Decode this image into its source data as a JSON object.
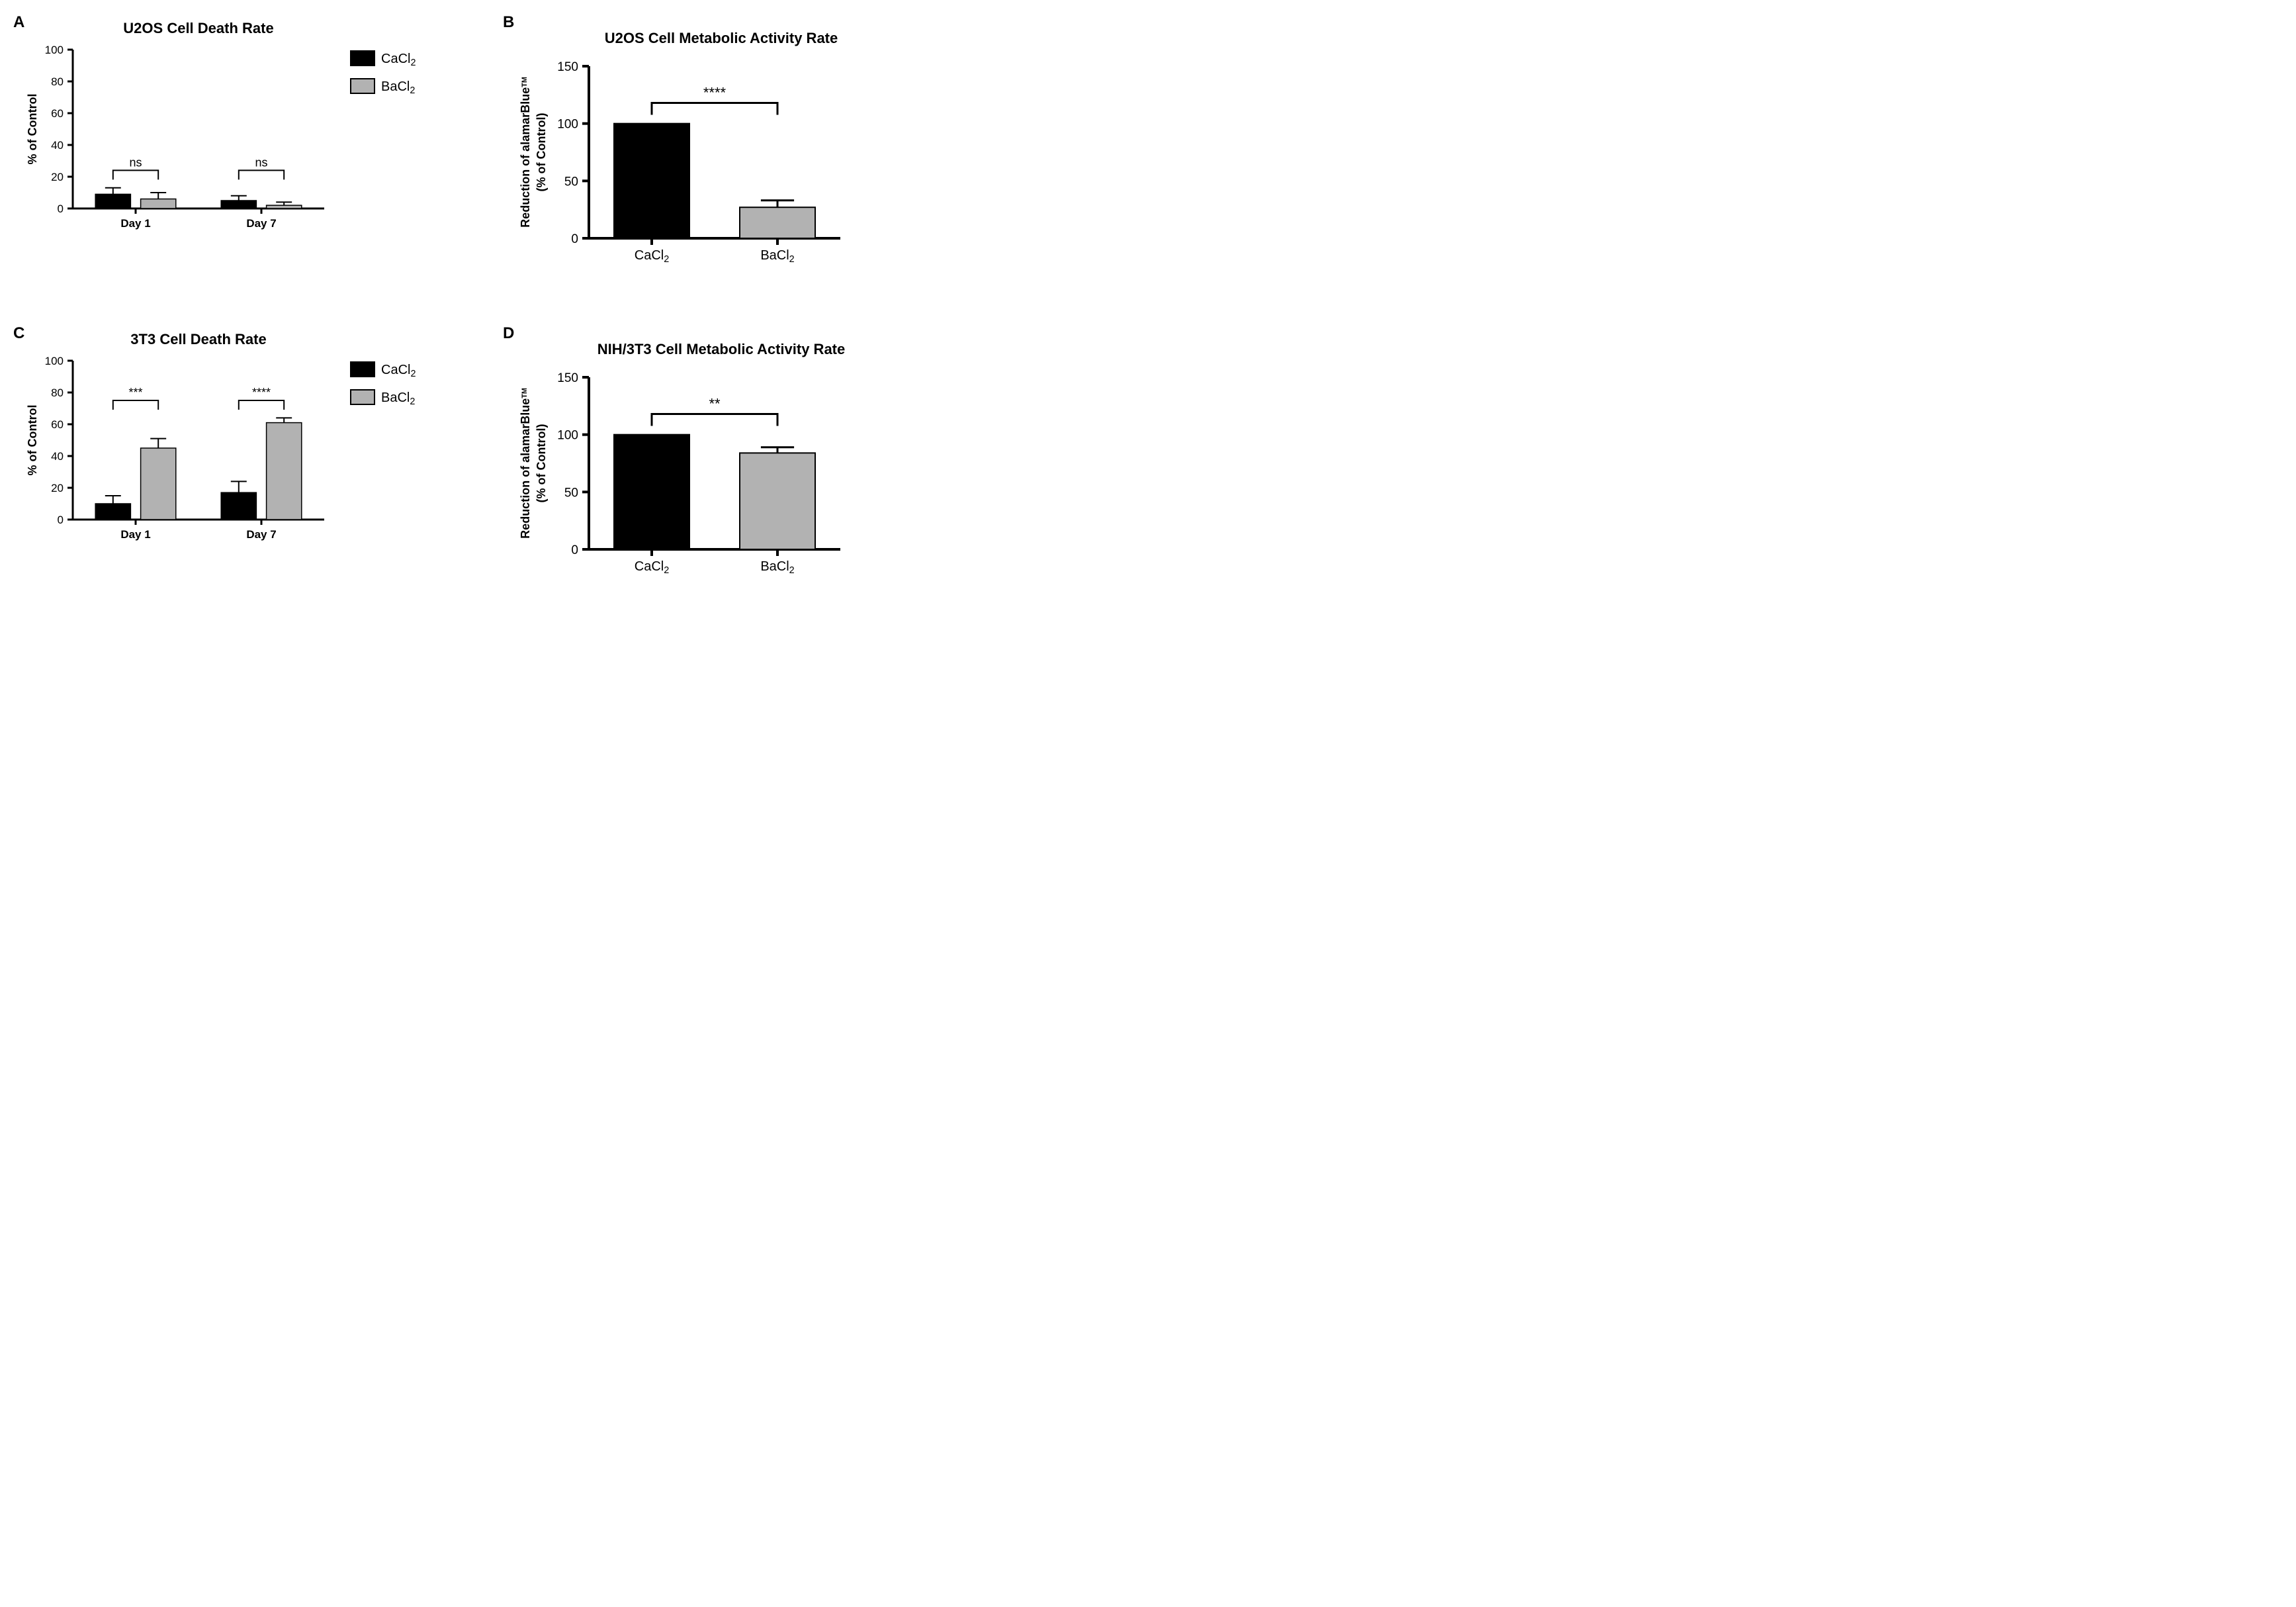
{
  "colors": {
    "cacl2": "#000000",
    "bacl2": "#b2b2b2",
    "stroke": "#000000",
    "bg": "#ffffff"
  },
  "panelA": {
    "label": "A",
    "type": "bar",
    "title": "U2OS Cell Death Rate",
    "title_fontsize": 22,
    "ylabel": "% of  Control",
    "label_fontsize": 18,
    "ylim": [
      0,
      100
    ],
    "ytick_step": 20,
    "axis_linewidth": 3,
    "bar_width_rel": 0.28,
    "gap_rel": 0.08,
    "groups": [
      "Day 1",
      "Day 7"
    ],
    "series": [
      {
        "name": "CaCl2",
        "color": "#000000"
      },
      {
        "name": "BaCl2",
        "color": "#b2b2b2"
      }
    ],
    "values": [
      [
        9,
        6
      ],
      [
        5,
        2
      ]
    ],
    "errors": [
      [
        4,
        4
      ],
      [
        3,
        2
      ]
    ],
    "annotations": [
      {
        "group": 0,
        "label": "ns",
        "y": 24
      },
      {
        "group": 1,
        "label": "ns",
        "y": 24
      }
    ],
    "legend": {
      "position": "right",
      "items": [
        {
          "label": "CaCl",
          "sub": "2",
          "color": "#000000"
        },
        {
          "label": "BaCl",
          "sub": "2",
          "color": "#b2b2b2"
        }
      ]
    }
  },
  "panelB": {
    "label": "B",
    "type": "bar",
    "title": "U2OS Cell Metabolic Activity Rate",
    "title_fontsize": 22,
    "ylabel_line1": "Reduction of alamarBlue",
    "ylabel_tm": "TM",
    "ylabel_line2": "(% of Control)",
    "label_fontsize": 18,
    "ylim": [
      0,
      150
    ],
    "ytick_step": 50,
    "axis_linewidth": 4,
    "bar_width_rel": 0.6,
    "categories": [
      "CaCl2",
      "BaCl2"
    ],
    "values": [
      100,
      27
    ],
    "errors": [
      0,
      6
    ],
    "colors": [
      "#000000",
      "#b2b2b2"
    ],
    "annotation": {
      "label": "****",
      "y": 118
    }
  },
  "panelC": {
    "label": "C",
    "type": "bar",
    "title": "3T3 Cell Death Rate",
    "title_fontsize": 22,
    "ylabel": "% of  Control",
    "label_fontsize": 18,
    "ylim": [
      0,
      100
    ],
    "ytick_step": 20,
    "axis_linewidth": 3,
    "bar_width_rel": 0.28,
    "gap_rel": 0.08,
    "groups": [
      "Day 1",
      "Day 7"
    ],
    "series": [
      {
        "name": "CaCl2",
        "color": "#000000"
      },
      {
        "name": "BaCl2",
        "color": "#b2b2b2"
      }
    ],
    "values": [
      [
        10,
        45
      ],
      [
        17,
        61
      ]
    ],
    "errors": [
      [
        5,
        6
      ],
      [
        7,
        3
      ]
    ],
    "annotations": [
      {
        "group": 0,
        "label": "***",
        "y": 75
      },
      {
        "group": 1,
        "label": "****",
        "y": 75
      }
    ],
    "legend": {
      "position": "right",
      "items": [
        {
          "label": "CaCl",
          "sub": "2",
          "color": "#000000"
        },
        {
          "label": "BaCl",
          "sub": "2",
          "color": "#b2b2b2"
        }
      ]
    }
  },
  "panelD": {
    "label": "D",
    "type": "bar",
    "title": "NIH/3T3 Cell Metabolic Activity Rate",
    "title_fontsize": 22,
    "ylabel_line1": "Reduction of alamarBlue",
    "ylabel_tm": "TM",
    "ylabel_line2": "(% of Control)",
    "label_fontsize": 18,
    "ylim": [
      0,
      150
    ],
    "ytick_step": 50,
    "axis_linewidth": 4,
    "bar_width_rel": 0.6,
    "categories": [
      "CaCl2",
      "BaCl2"
    ],
    "values": [
      100,
      84
    ],
    "errors": [
      0,
      5
    ],
    "colors": [
      "#000000",
      "#b2b2b2"
    ],
    "annotation": {
      "label": "**",
      "y": 118
    }
  }
}
